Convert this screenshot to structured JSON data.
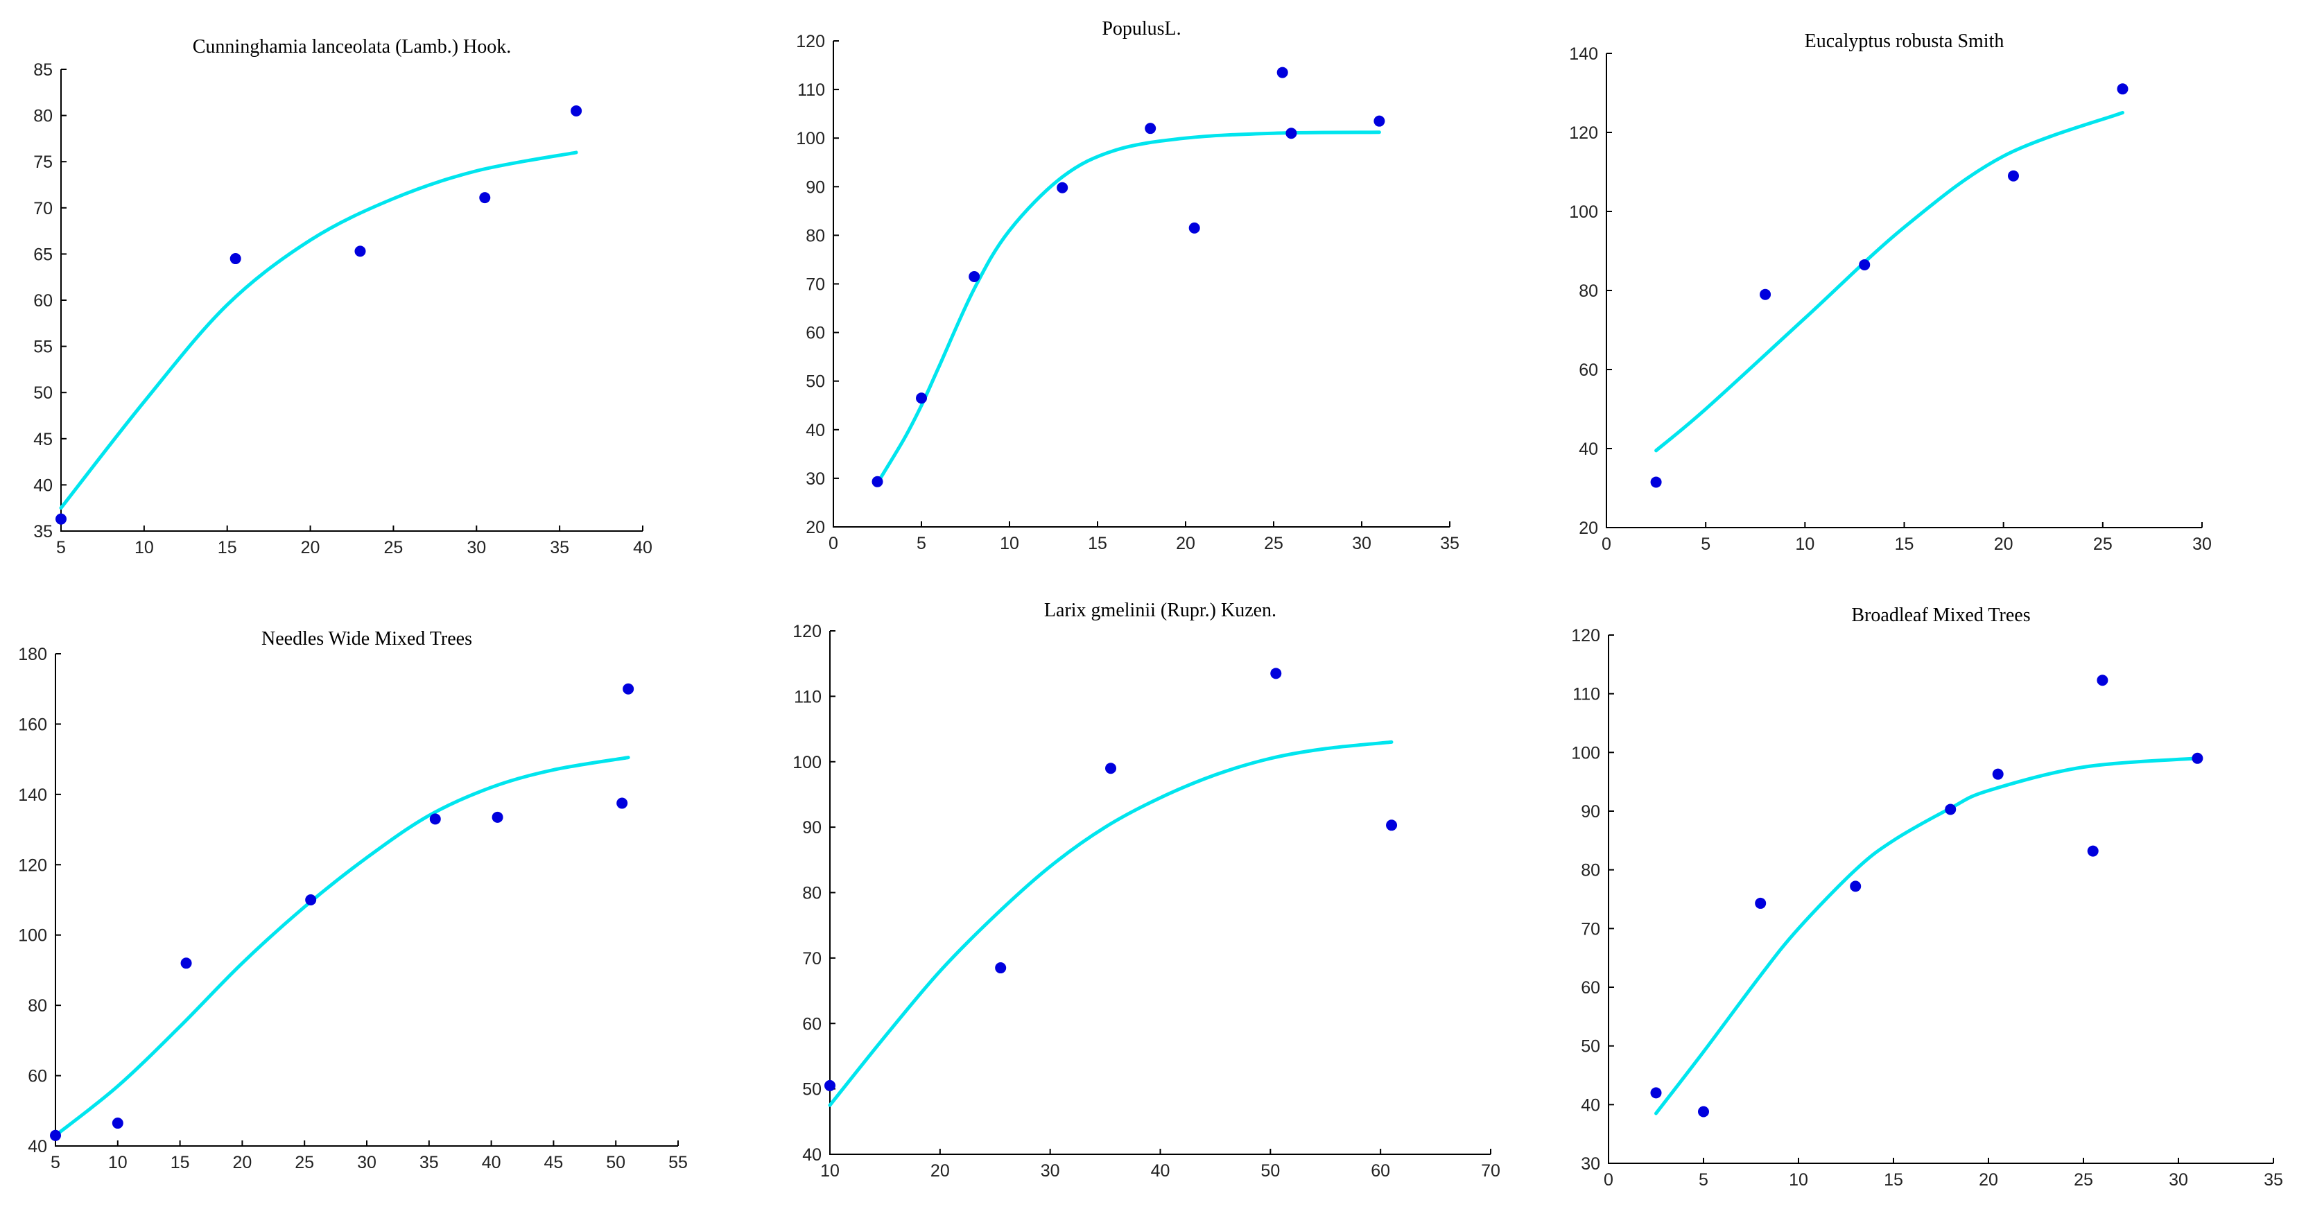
{
  "chart_data": [
    {
      "type": "scatter",
      "title": "Cunninghamia lanceolata (Lamb.) Hook.",
      "xlabel": "",
      "ylabel": "",
      "xlim": [
        5,
        40
      ],
      "ylim": [
        35,
        85
      ],
      "xticks": [
        5,
        10,
        15,
        20,
        25,
        30,
        35,
        40
      ],
      "yticks": [
        35,
        40,
        45,
        50,
        55,
        60,
        65,
        70,
        75,
        80,
        85
      ],
      "points": {
        "x": [
          5,
          15.5,
          23,
          30.5,
          36
        ],
        "y": [
          36.3,
          64.5,
          65.3,
          71.1,
          80.5
        ]
      },
      "fit": {
        "x": [
          5,
          10,
          15,
          20,
          25,
          30,
          36
        ],
        "y": [
          37.5,
          49,
          59.5,
          66.5,
          71,
          74,
          76
        ]
      }
    },
    {
      "type": "scatter",
      "title": "PopulusL.",
      "xlabel": "",
      "ylabel": "",
      "xlim": [
        0,
        35
      ],
      "ylim": [
        20,
        120
      ],
      "xticks": [
        0,
        5,
        10,
        15,
        20,
        25,
        30,
        35
      ],
      "yticks": [
        20,
        30,
        40,
        50,
        60,
        70,
        80,
        90,
        100,
        110,
        120
      ],
      "points": {
        "x": [
          2.5,
          5,
          8,
          13,
          18,
          20.5,
          25.5,
          26,
          31
        ],
        "y": [
          29.3,
          46.5,
          71.5,
          89.8,
          102,
          81.5,
          113.5,
          101,
          103.5
        ]
      },
      "fit": {
        "x": [
          2.5,
          4,
          5,
          6,
          8,
          10,
          13,
          16,
          20,
          25,
          31
        ],
        "y": [
          29,
          38,
          45,
          53,
          69,
          81,
          92,
          97.5,
          100,
          101,
          101.2
        ]
      }
    },
    {
      "type": "scatter",
      "title": "Eucalyptus robusta Smith",
      "xlabel": "",
      "ylabel": "",
      "xlim": [
        0,
        30
      ],
      "ylim": [
        20,
        140
      ],
      "xticks": [
        0,
        5,
        10,
        15,
        20,
        25,
        30
      ],
      "yticks": [
        20,
        40,
        60,
        80,
        100,
        120,
        140
      ],
      "points": {
        "x": [
          2.5,
          8,
          13,
          20.5,
          26
        ],
        "y": [
          31.5,
          79,
          86.5,
          109,
          131
        ]
      },
      "fit": {
        "x": [
          2.5,
          5,
          10,
          15,
          20,
          26
        ],
        "y": [
          39.5,
          50,
          73,
          96,
          114,
          125
        ]
      }
    },
    {
      "type": "scatter",
      "title": "Needles Wide Mixed Trees",
      "xlabel": "",
      "ylabel": "",
      "xlim": [
        5,
        55
      ],
      "ylim": [
        40,
        180
      ],
      "xticks": [
        5,
        10,
        15,
        20,
        25,
        30,
        35,
        40,
        45,
        50,
        55
      ],
      "yticks": [
        40,
        60,
        80,
        100,
        120,
        140,
        160,
        180
      ],
      "points": {
        "x": [
          5,
          10,
          15.5,
          25.5,
          35.5,
          40.5,
          50.5,
          51
        ],
        "y": [
          43,
          46.5,
          92,
          110,
          133,
          133.5,
          137.5,
          170
        ]
      },
      "fit": {
        "x": [
          5,
          10,
          15,
          20,
          25,
          30,
          35,
          40,
          45,
          51
        ],
        "y": [
          43,
          57,
          74,
          92,
          108,
          122,
          134,
          142,
          147,
          150.5
        ]
      }
    },
    {
      "type": "scatter",
      "title": "Larix gmelinii (Rupr.) Kuzen.",
      "xlabel": "",
      "ylabel": "",
      "xlim": [
        10,
        70
      ],
      "ylim": [
        40,
        120
      ],
      "xticks": [
        10,
        20,
        30,
        40,
        50,
        60,
        70
      ],
      "yticks": [
        40,
        50,
        60,
        70,
        80,
        90,
        100,
        110,
        120
      ],
      "points": {
        "x": [
          10,
          25.5,
          35.5,
          50.5,
          61
        ],
        "y": [
          50.5,
          68.5,
          99,
          113.5,
          90.3
        ]
      },
      "fit": {
        "x": [
          10,
          15,
          20,
          25,
          30,
          35,
          40,
          45,
          50,
          55,
          61
        ],
        "y": [
          47.5,
          58,
          68,
          76.5,
          84,
          90,
          94.5,
          98,
          100.5,
          102,
          103
        ]
      }
    },
    {
      "type": "scatter",
      "title": "Broadleaf Mixed Trees",
      "xlabel": "",
      "ylabel": "",
      "xlim": [
        0,
        35
      ],
      "ylim": [
        30,
        120
      ],
      "xticks": [
        0,
        5,
        10,
        15,
        20,
        25,
        30,
        35
      ],
      "yticks": [
        30,
        40,
        50,
        60,
        70,
        80,
        90,
        100,
        110,
        120
      ],
      "points": {
        "x": [
          2.5,
          5,
          8,
          13,
          18,
          20.5,
          25.5,
          26,
          31
        ],
        "y": [
          42,
          38.8,
          74.3,
          77.2,
          90.3,
          96.3,
          83.2,
          112.3,
          99
        ]
      },
      "fit": {
        "x": [
          2.5,
          5,
          8,
          10,
          13,
          15,
          18,
          20,
          25,
          31
        ],
        "y": [
          38.5,
          49,
          62,
          70,
          80,
          85,
          90.5,
          93.5,
          97.5,
          99
        ]
      }
    }
  ]
}
